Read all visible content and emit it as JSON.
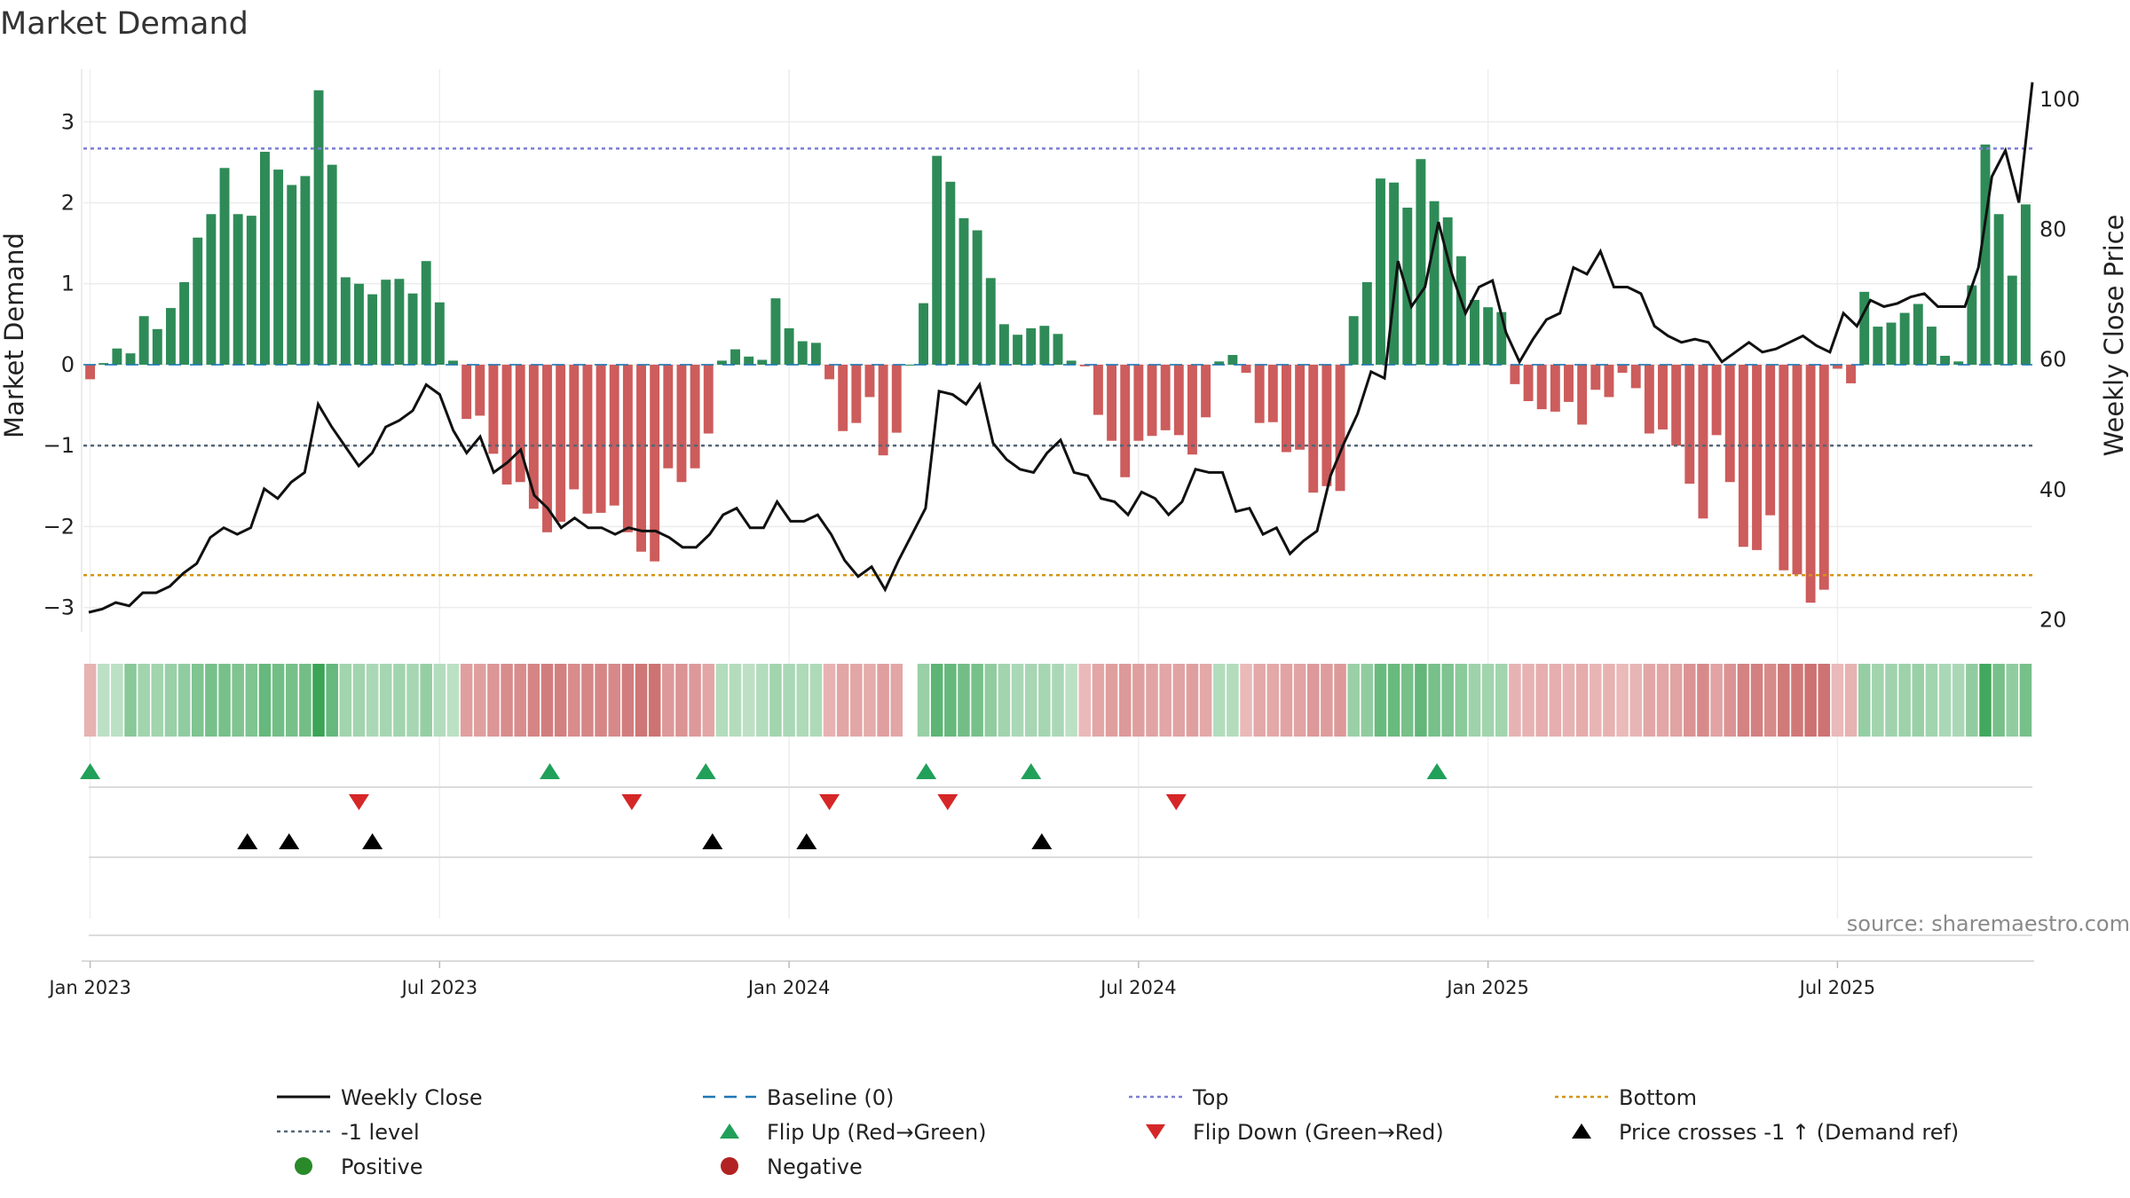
{
  "chart_data": {
    "type": "bar+line",
    "title": "Market Demand",
    "ylabel_left": "Market Demand",
    "ylabel_right": "Weekly Close Price",
    "yticks_left": [
      "3",
      "2",
      "1",
      "0",
      "−1",
      "−2",
      "−3"
    ],
    "yticks_right": [
      "100",
      "80",
      "60",
      "40",
      "20"
    ],
    "ylim_left": [
      -3.3,
      3.65
    ],
    "ylim_right": [
      18,
      104.5
    ],
    "xticks": [
      "Jan 2023",
      "Jul 2023",
      "Jan 2024",
      "Jul 2024",
      "Jan 2025",
      "Jul 2025"
    ],
    "reference_levels": {
      "baseline": 0,
      "top": 2.67,
      "minus_one": -1,
      "bottom": -2.6
    },
    "demand": [
      -0.18,
      0.02,
      0.2,
      0.14,
      0.6,
      0.44,
      0.7,
      1.02,
      1.57,
      1.86,
      2.43,
      1.86,
      1.84,
      2.63,
      2.41,
      2.22,
      2.33,
      3.39,
      2.47,
      1.08,
      1.0,
      0.87,
      1.05,
      1.06,
      0.88,
      1.28,
      0.77,
      0.05,
      -0.67,
      -0.63,
      -1.1,
      -1.48,
      -1.45,
      -1.78,
      -2.07,
      -1.94,
      -1.54,
      -1.84,
      -1.83,
      -1.74,
      -2.07,
      -2.31,
      -2.43,
      -1.28,
      -1.45,
      -1.28,
      -0.85,
      0.05,
      0.19,
      0.1,
      0.06,
      0.82,
      0.45,
      0.29,
      0.27,
      -0.18,
      -0.82,
      -0.72,
      -0.4,
      -1.12,
      -0.84,
      0.0,
      0.76,
      2.58,
      2.26,
      1.81,
      1.66,
      1.07,
      0.5,
      0.37,
      0.45,
      0.48,
      0.38,
      0.05,
      -0.02,
      -0.62,
      -0.94,
      -1.39,
      -0.94,
      -0.88,
      -0.81,
      -0.87,
      -1.11,
      -0.65,
      0.04,
      0.12,
      -0.1,
      -0.72,
      -0.71,
      -1.08,
      -1.05,
      -1.58,
      -1.5,
      -1.56,
      0.6,
      1.02,
      2.3,
      2.25,
      1.94,
      2.54,
      2.02,
      1.82,
      1.34,
      0.8,
      0.71,
      0.65,
      -0.24,
      -0.45,
      -0.55,
      -0.58,
      -0.46,
      -0.74,
      -0.31,
      -0.4,
      -0.1,
      -0.29,
      -0.85,
      -0.8,
      -1.0,
      -1.47,
      -1.9,
      -0.87,
      -1.45,
      -2.25,
      -2.29,
      -1.86,
      -2.54,
      -2.59,
      -2.94,
      -2.78,
      -0.05,
      -0.23,
      0.9,
      0.47,
      0.52,
      0.64,
      0.75,
      0.47,
      0.11,
      0.04,
      0.98,
      2.72,
      1.86,
      1.1,
      1.98
    ],
    "price": [
      21,
      21.5,
      22.5,
      22,
      24,
      24,
      25,
      27,
      28.5,
      32.5,
      34,
      33,
      34,
      40,
      38.5,
      41,
      42.5,
      53,
      49.5,
      46.5,
      43.5,
      45.5,
      49.5,
      50.5,
      52,
      56,
      54.5,
      49,
      45.5,
      48,
      42.5,
      44,
      46,
      39,
      37,
      34,
      35.5,
      34,
      34,
      33,
      34,
      33.5,
      33.5,
      32.5,
      31,
      31,
      33,
      36,
      37,
      34,
      34,
      38,
      35,
      35,
      36,
      33,
      29,
      26.5,
      28,
      24.5,
      29,
      33,
      37,
      55,
      54.5,
      53,
      56,
      47,
      44.5,
      43,
      42.5,
      45.5,
      47.5,
      42.5,
      42,
      38.5,
      38,
      36,
      39.5,
      38.5,
      36,
      38,
      43,
      42.5,
      42.5,
      36.5,
      37,
      33,
      34,
      30,
      32,
      33.5,
      42,
      47,
      51.5,
      58,
      57,
      75,
      68,
      71,
      81,
      73,
      67,
      71,
      72,
      64,
      59.5,
      63,
      66,
      67,
      74,
      73,
      76.5,
      71,
      71,
      70,
      65,
      63.5,
      62.5,
      63,
      62.5,
      59.5,
      61,
      62.5,
      61,
      61.5,
      62.5,
      63.5,
      62,
      61,
      67,
      65,
      69,
      68,
      68.5,
      69.5,
      70,
      68,
      68,
      68,
      74,
      88,
      92,
      84,
      102.5
    ],
    "strip_intensity": [
      0.3,
      0.2,
      0.2,
      0.5,
      0.35,
      0.35,
      0.4,
      0.45,
      0.55,
      0.6,
      0.6,
      0.55,
      0.55,
      0.7,
      0.62,
      0.6,
      0.62,
      0.95,
      0.7,
      0.35,
      0.35,
      0.3,
      0.33,
      0.35,
      0.32,
      0.42,
      0.25,
      0.2,
      0.45,
      0.45,
      0.52,
      0.6,
      0.6,
      0.66,
      0.72,
      0.7,
      0.6,
      0.65,
      0.65,
      0.63,
      0.72,
      0.78,
      0.8,
      0.5,
      0.55,
      0.5,
      0.4,
      0.25,
      0.25,
      0.2,
      0.25,
      0.35,
      0.3,
      0.28,
      0.28,
      0.3,
      0.4,
      0.4,
      0.35,
      0.45,
      0.4,
      0.0,
      0.4,
      0.75,
      0.7,
      0.62,
      0.6,
      0.45,
      0.35,
      0.3,
      0.32,
      0.33,
      0.3,
      0.2,
      0.25,
      0.4,
      0.45,
      0.5,
      0.45,
      0.42,
      0.4,
      0.42,
      0.45,
      0.38,
      0.25,
      0.25,
      0.25,
      0.38,
      0.38,
      0.42,
      0.42,
      0.5,
      0.48,
      0.5,
      0.4,
      0.45,
      0.68,
      0.68,
      0.6,
      0.72,
      0.6,
      0.56,
      0.48,
      0.38,
      0.35,
      0.35,
      0.3,
      0.3,
      0.33,
      0.33,
      0.3,
      0.35,
      0.28,
      0.3,
      0.25,
      0.28,
      0.4,
      0.4,
      0.42,
      0.55,
      0.62,
      0.42,
      0.55,
      0.68,
      0.7,
      0.62,
      0.75,
      0.76,
      0.82,
      0.8,
      0.25,
      0.3,
      0.42,
      0.35,
      0.36,
      0.38,
      0.4,
      0.35,
      0.3,
      0.3,
      0.45,
      0.9,
      0.6,
      0.45,
      0.6
    ],
    "flip_up_x": [
      0.0,
      34.2,
      45.8,
      62.2,
      70.0,
      100.2
    ],
    "flip_down_x": [
      20.0,
      40.3,
      55.0,
      63.8,
      80.8
    ],
    "price_cross_x": [
      11.7,
      14.8,
      21.0,
      46.3,
      53.3,
      70.8
    ],
    "colors": {
      "positive": "#2e8b57",
      "negative": "#cd5c5c",
      "price": "#111111",
      "top": "#7b7fd6",
      "minus_one": "#556677",
      "bottom": "#d4940f",
      "baseline": "#1f77b4",
      "flip_up": "#21a05a",
      "flip_down": "#d62728",
      "cross": "#000000",
      "pos_marker": "#2a8a2a",
      "neg_marker": "#b22222",
      "grid": "#d6d6d6"
    },
    "legend": [
      {
        "label": "Weekly Close",
        "kind": "line-solid",
        "color": "#111111"
      },
      {
        "label": "Baseline (0)",
        "kind": "line-dash",
        "color": "#1f77b4"
      },
      {
        "label": "Top",
        "kind": "line-dot",
        "color": "#7b7fd6"
      },
      {
        "label": "Bottom",
        "kind": "line-dot",
        "color": "#d4940f"
      },
      {
        "label": "-1 level",
        "kind": "line-dot",
        "color": "#556677"
      },
      {
        "label": "Flip Up (Red→Green)",
        "kind": "tri-up",
        "color": "#21a05a"
      },
      {
        "label": "Flip Down (Green→Red)",
        "kind": "tri-down",
        "color": "#d62728"
      },
      {
        "label": "Price crosses -1 ↑ (Demand ref)",
        "kind": "tri-up",
        "color": "#000000"
      },
      {
        "label": "Positive",
        "kind": "dot",
        "color": "#2a8a2a"
      },
      {
        "label": "Negative",
        "kind": "dot",
        "color": "#b22222"
      }
    ]
  },
  "source_text": "source: sharemaestro.com"
}
